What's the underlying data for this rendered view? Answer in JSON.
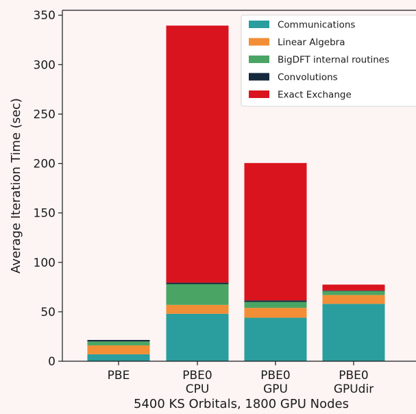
{
  "chart_data": {
    "type": "bar",
    "stacked": true,
    "categories": [
      [
        "PBE"
      ],
      [
        "PBE0",
        "CPU"
      ],
      [
        "PBE0",
        "GPU"
      ],
      [
        "PBE0",
        "GPUdir"
      ]
    ],
    "xlabel": "5400 KS Orbitals, 1800 GPU Nodes",
    "ylabel": "Average Iteration Time (sec)",
    "ylim": [
      0,
      355
    ],
    "yticks": [
      0,
      50,
      100,
      150,
      200,
      250,
      300,
      350
    ],
    "grid": false,
    "legend_position": "top-right",
    "series": [
      {
        "name": "Communications",
        "color": "#2a9e9e",
        "values": [
          7,
          48,
          44,
          58
        ]
      },
      {
        "name": "Linear Algebra",
        "color": "#f28e36",
        "values": [
          9,
          9,
          10,
          9
        ]
      },
      {
        "name": "BigDFT internal routines",
        "color": "#4aa564",
        "values": [
          4,
          21,
          6,
          4
        ]
      },
      {
        "name": "Convolutions",
        "color": "#16283c",
        "values": [
          1.5,
          1.5,
          1.5,
          0.5
        ]
      },
      {
        "name": "Exact Exchange",
        "color": "#d9141e",
        "values": [
          0,
          260,
          139,
          6
        ]
      }
    ]
  }
}
